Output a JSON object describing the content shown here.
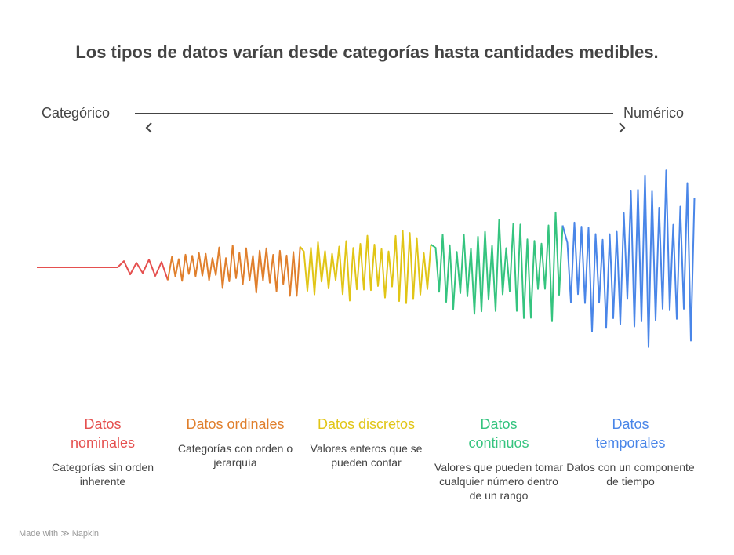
{
  "title": "Los tipos de datos varían desde categorías hasta cantidades medibles.",
  "axis": {
    "left_label": "Categórico",
    "right_label": "Numérico"
  },
  "categories": [
    {
      "name_lines": [
        "Datos",
        "nominales"
      ],
      "description": "Categorías sin orden inherente",
      "color": "#e5504f"
    },
    {
      "name_lines": [
        "Datos ordinales"
      ],
      "description": "Categorías con orden o jerarquía",
      "color": "#e07f2c"
    },
    {
      "name_lines": [
        "Datos discretos"
      ],
      "description": "Valores enteros que se pueden contar",
      "color": "#e1c516"
    },
    {
      "name_lines": [
        "Datos",
        "continuos"
      ],
      "description": "Valores que pueden tomar cualquier número dentro de un rango",
      "color": "#35c47f"
    },
    {
      "name_lines": [
        "Datos",
        "temporales"
      ],
      "description": "Datos con un componente de tiempo",
      "color": "#4a86e8"
    }
  ],
  "footer": {
    "made_with": "Made with",
    "brand": "Napkin"
  }
}
